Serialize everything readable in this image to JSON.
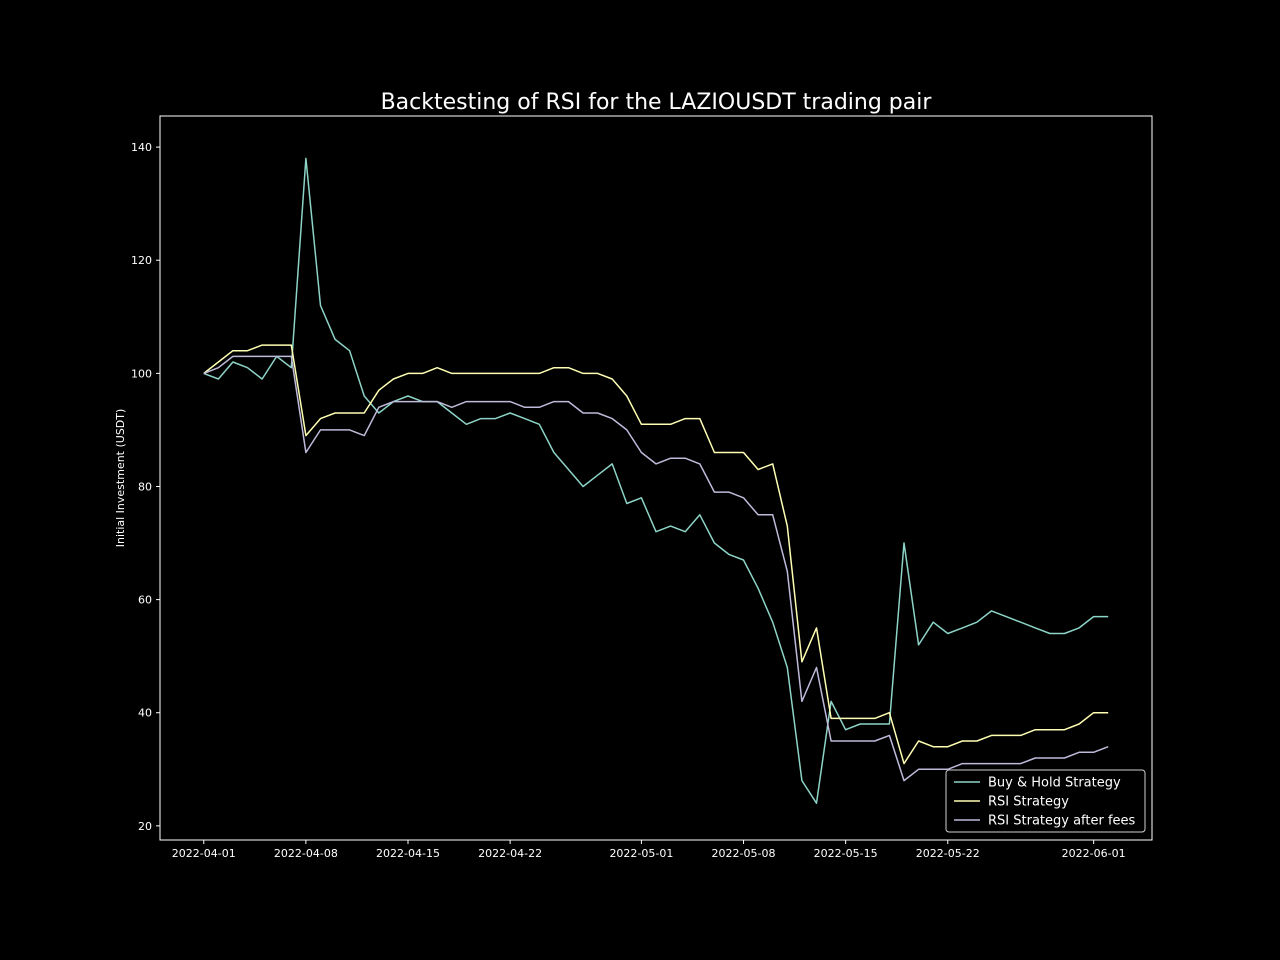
{
  "chart_data": {
    "type": "line",
    "title": "Backtesting of RSI for the LAZIOUSDT trading pair",
    "xlabel": "",
    "ylabel": "Initial Investment (USDT)",
    "x_tick_labels": [
      "2022-04-01",
      "2022-04-08",
      "2022-04-15",
      "2022-04-22",
      "2022-05-01",
      "2022-05-08",
      "2022-05-15",
      "2022-05-22",
      "2022-06-01"
    ],
    "y_ticks": [
      20,
      40,
      60,
      80,
      100,
      120,
      140
    ],
    "xlim": [
      "2022-03-29",
      "2022-06-05"
    ],
    "ylim": [
      17.5,
      145.5
    ],
    "grid": false,
    "legend_position": "lower-right",
    "background": "#000000",
    "series": [
      {
        "name": "Buy & Hold Strategy",
        "color": "#8dd3c7",
        "x": [
          "2022-04-01",
          "2022-04-02",
          "2022-04-03",
          "2022-04-04",
          "2022-04-05",
          "2022-04-06",
          "2022-04-07",
          "2022-04-08",
          "2022-04-09",
          "2022-04-10",
          "2022-04-11",
          "2022-04-12",
          "2022-04-13",
          "2022-04-14",
          "2022-04-15",
          "2022-04-16",
          "2022-04-17",
          "2022-04-18",
          "2022-04-19",
          "2022-04-20",
          "2022-04-21",
          "2022-04-22",
          "2022-04-23",
          "2022-04-24",
          "2022-04-25",
          "2022-04-26",
          "2022-04-27",
          "2022-04-28",
          "2022-04-29",
          "2022-04-30",
          "2022-05-01",
          "2022-05-02",
          "2022-05-03",
          "2022-05-04",
          "2022-05-05",
          "2022-05-06",
          "2022-05-07",
          "2022-05-08",
          "2022-05-09",
          "2022-05-10",
          "2022-05-11",
          "2022-05-12",
          "2022-05-13",
          "2022-05-14",
          "2022-05-15",
          "2022-05-16",
          "2022-05-17",
          "2022-05-18",
          "2022-05-19",
          "2022-05-20",
          "2022-05-21",
          "2022-05-22",
          "2022-05-23",
          "2022-05-24",
          "2022-05-25",
          "2022-05-26",
          "2022-05-27",
          "2022-05-28",
          "2022-05-29",
          "2022-05-30",
          "2022-05-31",
          "2022-06-01",
          "2022-06-02"
        ],
        "values": [
          100,
          99,
          102,
          101,
          99,
          103,
          101,
          138,
          112,
          106,
          104,
          96,
          93,
          95,
          96,
          95,
          95,
          93,
          91,
          92,
          92,
          93,
          92,
          91,
          86,
          83,
          80,
          82,
          84,
          77,
          78,
          72,
          73,
          72,
          75,
          70,
          68,
          67,
          62,
          56,
          48,
          28,
          24,
          42,
          37,
          38,
          38,
          38,
          70,
          52,
          56,
          54,
          55,
          56,
          58,
          57,
          56,
          55,
          54,
          54,
          55,
          57,
          57
        ]
      },
      {
        "name": "RSI Strategy",
        "color": "#ffffb3",
        "x": [
          "2022-04-01",
          "2022-04-02",
          "2022-04-03",
          "2022-04-04",
          "2022-04-05",
          "2022-04-06",
          "2022-04-07",
          "2022-04-08",
          "2022-04-09",
          "2022-04-10",
          "2022-04-11",
          "2022-04-12",
          "2022-04-13",
          "2022-04-14",
          "2022-04-15",
          "2022-04-16",
          "2022-04-17",
          "2022-04-18",
          "2022-04-19",
          "2022-04-20",
          "2022-04-21",
          "2022-04-22",
          "2022-04-23",
          "2022-04-24",
          "2022-04-25",
          "2022-04-26",
          "2022-04-27",
          "2022-04-28",
          "2022-04-29",
          "2022-04-30",
          "2022-05-01",
          "2022-05-02",
          "2022-05-03",
          "2022-05-04",
          "2022-05-05",
          "2022-05-06",
          "2022-05-07",
          "2022-05-08",
          "2022-05-09",
          "2022-05-10",
          "2022-05-11",
          "2022-05-12",
          "2022-05-13",
          "2022-05-14",
          "2022-05-15",
          "2022-05-16",
          "2022-05-17",
          "2022-05-18",
          "2022-05-19",
          "2022-05-20",
          "2022-05-21",
          "2022-05-22",
          "2022-05-23",
          "2022-05-24",
          "2022-05-25",
          "2022-05-26",
          "2022-05-27",
          "2022-05-28",
          "2022-05-29",
          "2022-05-30",
          "2022-05-31",
          "2022-06-01",
          "2022-06-02"
        ],
        "values": [
          100,
          102,
          104,
          104,
          105,
          105,
          105,
          89,
          92,
          93,
          93,
          93,
          97,
          99,
          100,
          100,
          101,
          100,
          100,
          100,
          100,
          100,
          100,
          100,
          101,
          101,
          100,
          100,
          99,
          96,
          91,
          91,
          91,
          92,
          92,
          86,
          86,
          86,
          83,
          84,
          73,
          49,
          55,
          39,
          39,
          39,
          39,
          40,
          31,
          35,
          34,
          34,
          35,
          35,
          36,
          36,
          36,
          37,
          37,
          37,
          38,
          40,
          40
        ]
      },
      {
        "name": "RSI Strategy after fees",
        "color": "#bebada",
        "x": [
          "2022-04-01",
          "2022-04-02",
          "2022-04-03",
          "2022-04-04",
          "2022-04-05",
          "2022-04-06",
          "2022-04-07",
          "2022-04-08",
          "2022-04-09",
          "2022-04-10",
          "2022-04-11",
          "2022-04-12",
          "2022-04-13",
          "2022-04-14",
          "2022-04-15",
          "2022-04-16",
          "2022-04-17",
          "2022-04-18",
          "2022-04-19",
          "2022-04-20",
          "2022-04-21",
          "2022-04-22",
          "2022-04-23",
          "2022-04-24",
          "2022-04-25",
          "2022-04-26",
          "2022-04-27",
          "2022-04-28",
          "2022-04-29",
          "2022-04-30",
          "2022-05-01",
          "2022-05-02",
          "2022-05-03",
          "2022-05-04",
          "2022-05-05",
          "2022-05-06",
          "2022-05-07",
          "2022-05-08",
          "2022-05-09",
          "2022-05-10",
          "2022-05-11",
          "2022-05-12",
          "2022-05-13",
          "2022-05-14",
          "2022-05-15",
          "2022-05-16",
          "2022-05-17",
          "2022-05-18",
          "2022-05-19",
          "2022-05-20",
          "2022-05-21",
          "2022-05-22",
          "2022-05-23",
          "2022-05-24",
          "2022-05-25",
          "2022-05-26",
          "2022-05-27",
          "2022-05-28",
          "2022-05-29",
          "2022-05-30",
          "2022-05-31",
          "2022-06-01",
          "2022-06-02"
        ],
        "values": [
          100,
          101,
          103,
          103,
          103,
          103,
          103,
          86,
          90,
          90,
          90,
          89,
          94,
          95,
          95,
          95,
          95,
          94,
          95,
          95,
          95,
          95,
          94,
          94,
          95,
          95,
          93,
          93,
          92,
          90,
          86,
          84,
          85,
          85,
          84,
          79,
          79,
          78,
          75,
          75,
          65,
          42,
          48,
          35,
          35,
          35,
          35,
          36,
          28,
          30,
          30,
          30,
          31,
          31,
          31,
          31,
          31,
          32,
          32,
          32,
          33,
          33,
          34
        ]
      }
    ]
  }
}
